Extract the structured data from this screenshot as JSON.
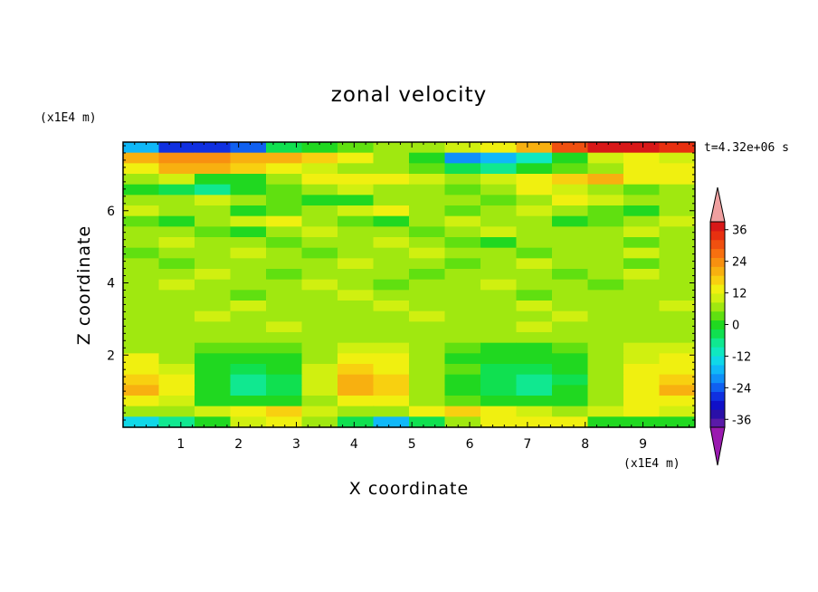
{
  "chart_data": {
    "type": "heatmap",
    "title": "zonal velocity",
    "xlabel": "X coordinate",
    "ylabel": "Z coordinate",
    "x_unit": "(x1E4 m)",
    "z_unit": "(x1E4 m)",
    "time_label": "t=4.32e+06 s",
    "xlim": [
      0,
      9.9
    ],
    "ylim": [
      0,
      7.9
    ],
    "x_ticks": [
      1,
      2,
      3,
      4,
      5,
      6,
      7,
      8,
      9
    ],
    "y_ticks": [
      2,
      4,
      6
    ],
    "colorbar": {
      "levels": [
        -42,
        -39,
        -36,
        -33,
        -30,
        -27,
        -24,
        -21,
        -18,
        -15,
        -12,
        -9,
        -6,
        -3,
        0,
        3,
        6,
        9,
        12,
        15,
        18,
        21,
        24,
        27,
        30,
        33,
        36,
        39,
        42
      ],
      "tick_labels": [
        "36",
        "24",
        "12",
        "0",
        "-12",
        "-24",
        "-36"
      ],
      "tick_values": [
        36,
        24,
        12,
        0,
        -12,
        -24,
        -36
      ],
      "extend": "both",
      "colors": [
        "#9a1ab0",
        "#5a1aa8",
        "#2a10a8",
        "#1010c8",
        "#1030e0",
        "#1060f0",
        "#1090f8",
        "#10b8f8",
        "#10d8e8",
        "#10e8c0",
        "#10e890",
        "#10e050",
        "#20d820",
        "#60e010",
        "#a0e810",
        "#d0f010",
        "#f0f010",
        "#f8d010",
        "#f8b010",
        "#f89010",
        "#f87010",
        "#f05010",
        "#e83010",
        "#d81818",
        "#f0a0a0"
      ]
    },
    "field_rows": [
      {
        "z": 7.85,
        "values": [
          -20,
          -28,
          -30,
          -26,
          -8,
          -4,
          -2,
          0,
          2,
          4,
          6,
          14,
          22,
          28,
          30,
          24
        ]
      },
      {
        "z": 7.55,
        "values": [
          12,
          16,
          15,
          14,
          12,
          10,
          6,
          2,
          -6,
          -22,
          -20,
          -14,
          -4,
          4,
          6,
          4
        ]
      },
      {
        "z": 7.25,
        "values": [
          8,
          12,
          14,
          10,
          6,
          4,
          2,
          0,
          -3,
          -8,
          -10,
          -6,
          -2,
          2,
          6,
          8
        ]
      },
      {
        "z": 6.95,
        "values": [
          2,
          4,
          -6,
          -4,
          2,
          6,
          8,
          6,
          4,
          2,
          4,
          6,
          10,
          12,
          8,
          6
        ]
      },
      {
        "z": 6.65,
        "values": [
          -4,
          -8,
          -10,
          -6,
          -2,
          2,
          4,
          2,
          0,
          -2,
          2,
          6,
          4,
          0,
          -2,
          2
        ]
      },
      {
        "z": 6.35,
        "values": [
          0,
          2,
          4,
          2,
          -2,
          -6,
          -4,
          0,
          2,
          0,
          -2,
          2,
          6,
          4,
          2,
          0
        ]
      },
      {
        "z": 6.05,
        "values": [
          4,
          2,
          0,
          -4,
          -2,
          2,
          4,
          6,
          2,
          -2,
          0,
          4,
          2,
          -2,
          -4,
          0
        ]
      },
      {
        "z": 5.75,
        "values": [
          -2,
          -4,
          0,
          4,
          6,
          2,
          -2,
          -4,
          0,
          4,
          2,
          0,
          -4,
          -2,
          2,
          4
        ]
      },
      {
        "z": 5.45,
        "values": [
          2,
          0,
          -2,
          -4,
          0,
          4,
          2,
          0,
          -2,
          0,
          4,
          2,
          0,
          2,
          4,
          2
        ]
      },
      {
        "z": 5.15,
        "values": [
          0,
          4,
          2,
          0,
          -2,
          0,
          2,
          4,
          2,
          -2,
          -4,
          0,
          2,
          0,
          -2,
          0
        ]
      },
      {
        "z": 4.85,
        "values": [
          -2,
          0,
          2,
          4,
          2,
          -2,
          0,
          2,
          4,
          2,
          0,
          -2,
          0,
          2,
          4,
          2
        ]
      },
      {
        "z": 4.55,
        "values": [
          2,
          -2,
          0,
          2,
          0,
          2,
          4,
          2,
          0,
          -2,
          2,
          4,
          2,
          0,
          -2,
          0
        ]
      },
      {
        "z": 4.25,
        "values": [
          0,
          2,
          4,
          2,
          -2,
          0,
          2,
          0,
          -2,
          0,
          2,
          0,
          -2,
          2,
          4,
          2
        ]
      },
      {
        "z": 3.95,
        "values": [
          2,
          4,
          2,
          0,
          2,
          4,
          2,
          -2,
          0,
          2,
          4,
          2,
          0,
          -2,
          0,
          2
        ]
      },
      {
        "z": 3.65,
        "values": [
          0,
          2,
          0,
          -2,
          0,
          2,
          4,
          2,
          0,
          2,
          0,
          -2,
          0,
          2,
          2,
          0
        ]
      },
      {
        "z": 3.35,
        "values": [
          2,
          0,
          2,
          4,
          2,
          0,
          2,
          4,
          2,
          0,
          2,
          4,
          2,
          0,
          2,
          4
        ]
      },
      {
        "z": 3.05,
        "values": [
          0,
          2,
          4,
          2,
          0,
          2,
          0,
          2,
          4,
          2,
          0,
          2,
          4,
          2,
          0,
          2
        ]
      },
      {
        "z": 2.75,
        "values": [
          2,
          2,
          0,
          2,
          4,
          2,
          0,
          2,
          2,
          0,
          2,
          4,
          2,
          0,
          2,
          2
        ]
      },
      {
        "z": 2.45,
        "values": [
          0,
          0,
          2,
          0,
          2,
          2,
          0,
          0,
          2,
          2,
          0,
          2,
          0,
          2,
          2,
          0
        ]
      },
      {
        "z": 2.15,
        "values": [
          2,
          0,
          -2,
          -2,
          -2,
          2,
          4,
          4,
          0,
          -2,
          -4,
          -4,
          -2,
          2,
          4,
          4
        ]
      },
      {
        "z": 1.85,
        "values": [
          6,
          2,
          -4,
          -6,
          -4,
          2,
          8,
          6,
          2,
          -4,
          -6,
          -6,
          -4,
          2,
          4,
          6
        ]
      },
      {
        "z": 1.55,
        "values": [
          8,
          4,
          -6,
          -8,
          -6,
          4,
          10,
          8,
          2,
          -2,
          -8,
          -8,
          -6,
          2,
          6,
          8
        ]
      },
      {
        "z": 1.25,
        "values": [
          10,
          6,
          -6,
          -10,
          -8,
          4,
          12,
          10,
          2,
          -4,
          -8,
          -10,
          -8,
          2,
          8,
          10
        ]
      },
      {
        "z": 0.95,
        "values": [
          12,
          6,
          -6,
          -10,
          -8,
          4,
          12,
          10,
          2,
          -6,
          -8,
          -10,
          -6,
          2,
          8,
          12
        ]
      },
      {
        "z": 0.65,
        "values": [
          8,
          4,
          -4,
          -6,
          -4,
          2,
          8,
          6,
          2,
          -2,
          -4,
          -6,
          -4,
          2,
          6,
          8
        ]
      },
      {
        "z": 0.35,
        "values": [
          2,
          0,
          4,
          8,
          10,
          4,
          0,
          2,
          6,
          10,
          8,
          4,
          0,
          4,
          8,
          4
        ]
      },
      {
        "z": 0.05,
        "values": [
          -18,
          -10,
          -4,
          4,
          6,
          2,
          -8,
          -20,
          -8,
          2,
          6,
          8,
          6,
          -4,
          -6,
          -4
        ]
      }
    ]
  }
}
